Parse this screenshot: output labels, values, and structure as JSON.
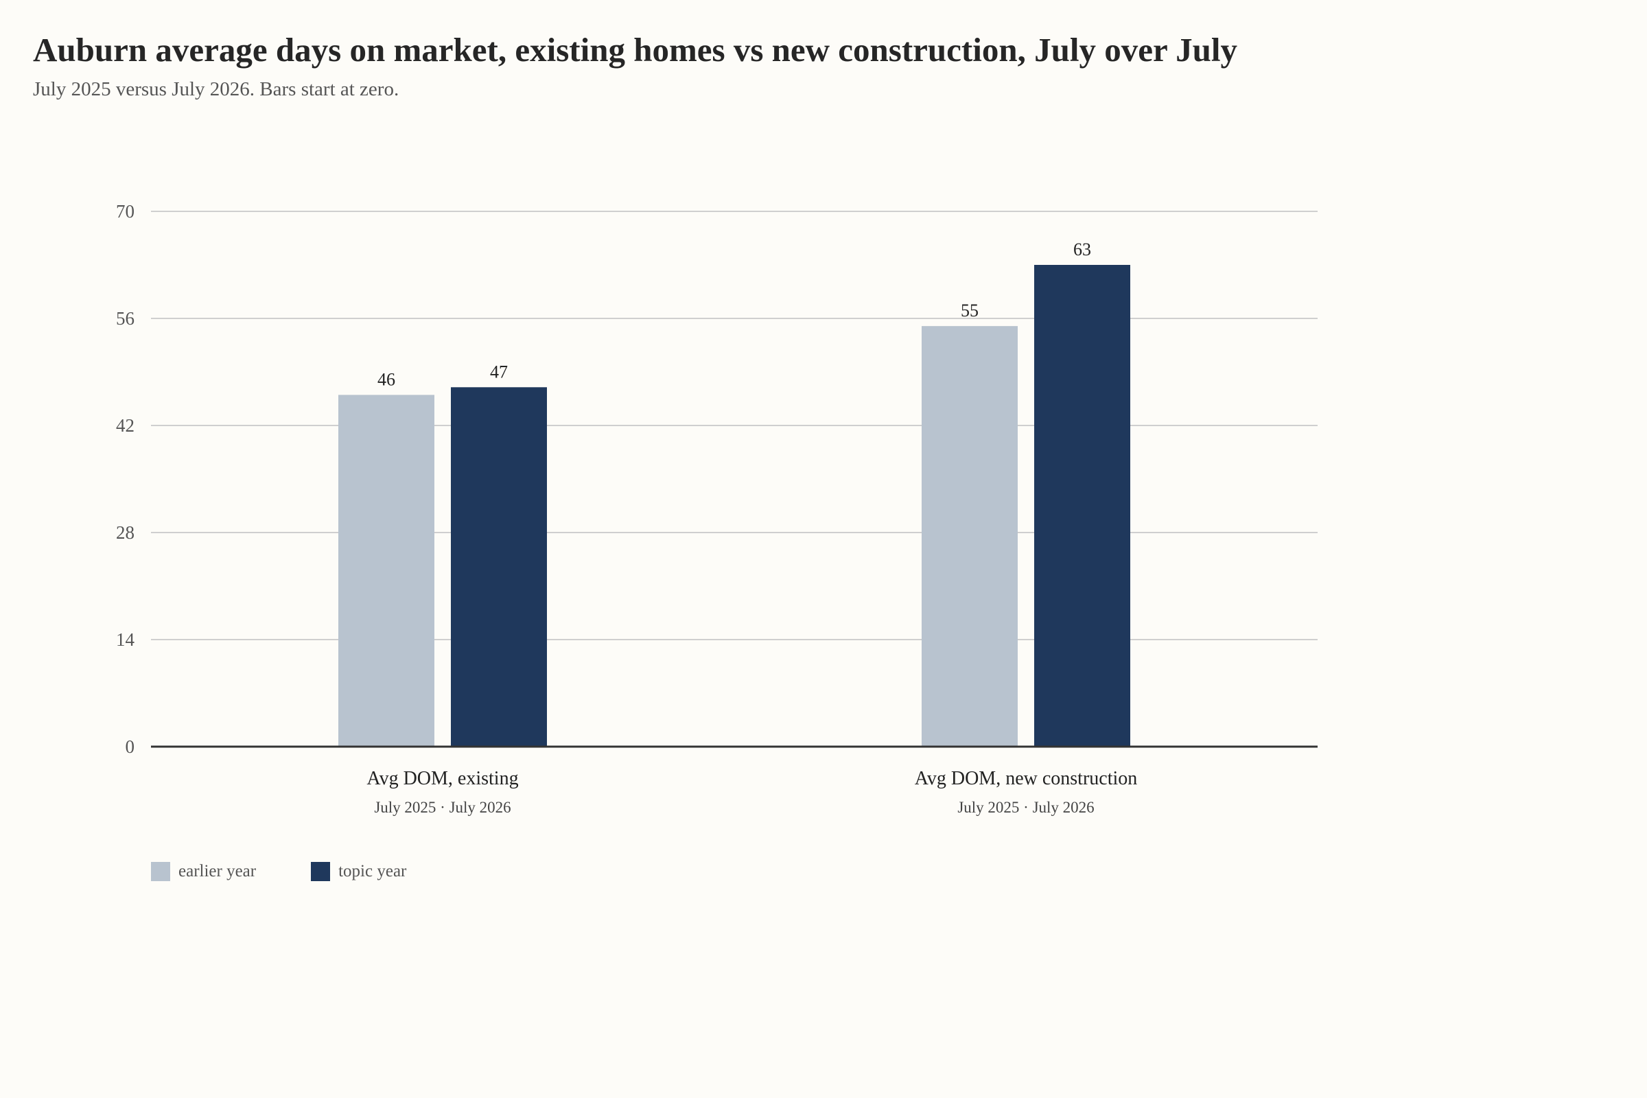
{
  "chart_data": {
    "type": "bar",
    "title": "Auburn average days on market, existing homes vs new construction, July over July",
    "subtitle": "July 2025 versus July 2026. Bars start at zero.",
    "categories": [
      "Avg DOM, existing",
      "Avg DOM, new construction"
    ],
    "category_sublabels": [
      "July 2025 · July 2026",
      "July 2025 · July 2026"
    ],
    "series": [
      {
        "name": "earlier year",
        "color": "#b8c3cf",
        "values": [
          46,
          55
        ]
      },
      {
        "name": "topic year",
        "color": "#1f385c",
        "values": [
          47,
          63
        ]
      }
    ],
    "ylim": [
      0,
      70
    ],
    "yticks": [
      0,
      14,
      28,
      42,
      56,
      70
    ],
    "grid": true,
    "legend_position": "bottom-left",
    "xlabel": "",
    "ylabel": ""
  }
}
